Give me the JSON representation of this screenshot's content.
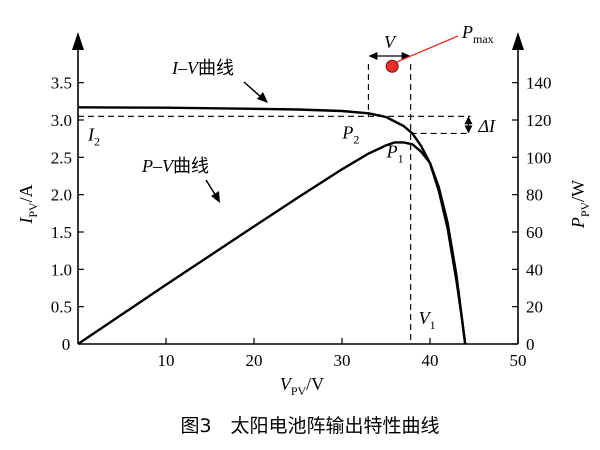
{
  "chart_data": {
    "type": "line",
    "caption": "图3　太阳电池阵输出特性曲线",
    "xlabel": "V_PV/V",
    "ylabel_left": "I_PV/A",
    "ylabel_right": "P_PV/W",
    "xlim": [
      0,
      50
    ],
    "ylim_left": [
      0,
      3.75
    ],
    "ylim_right": [
      0,
      150
    ],
    "x_ticks": [
      0,
      10,
      20,
      30,
      40,
      50
    ],
    "y_left_ticks": [
      0,
      0.5,
      1.0,
      1.5,
      2.0,
      2.5,
      3.0,
      3.5
    ],
    "y_left_tick_labels": [
      "0",
      "0.5",
      "1.0",
      "1.5",
      "2.0",
      "2.5",
      "3.0",
      "3.5"
    ],
    "y_right_ticks": [
      0,
      20,
      40,
      60,
      80,
      100,
      120,
      140
    ],
    "grid": false,
    "series": [
      {
        "name": "I-V曲线",
        "axis": "left",
        "x": [
          0,
          10,
          20,
          25,
          30,
          33,
          35,
          37,
          38,
          39,
          40,
          41,
          42,
          43,
          43.5,
          44
        ],
        "y": [
          3.17,
          3.165,
          3.15,
          3.14,
          3.12,
          3.09,
          3.04,
          2.92,
          2.82,
          2.65,
          2.42,
          2.05,
          1.55,
          0.85,
          0.45,
          0
        ]
      },
      {
        "name": "P-V曲线",
        "axis": "right",
        "x": [
          0,
          10,
          20,
          25,
          30,
          33,
          35,
          36,
          37,
          38,
          39,
          40,
          41,
          42,
          43,
          44
        ],
        "y": [
          0,
          31.7,
          63,
          78.5,
          93.6,
          102,
          106.4,
          108,
          108,
          107,
          103,
          97,
          84,
          65,
          37,
          0
        ]
      }
    ],
    "annotations": {
      "iv_label": "I–V曲线",
      "pv_label": "P–V曲线",
      "pmax": "P",
      "pmax_sub": "max",
      "p1": "P",
      "p1_sub": "1",
      "p2": "P",
      "p2_sub": "2",
      "v1": "V",
      "v1_sub": "1",
      "i2": "I",
      "i2_sub": "2",
      "v": "V",
      "delta_i": "ΔI"
    },
    "marker_points": {
      "pmax": {
        "x": 35.7,
        "y_left": 3.72
      },
      "p1": {
        "x": 37.8,
        "y_left": 2.82
      },
      "p2": {
        "x": 33.0,
        "y_left": 3.05
      }
    },
    "colors": {
      "curve": "#000000",
      "pmax_marker": "#e8302a",
      "pmax_leader": "#e8302a"
    }
  }
}
